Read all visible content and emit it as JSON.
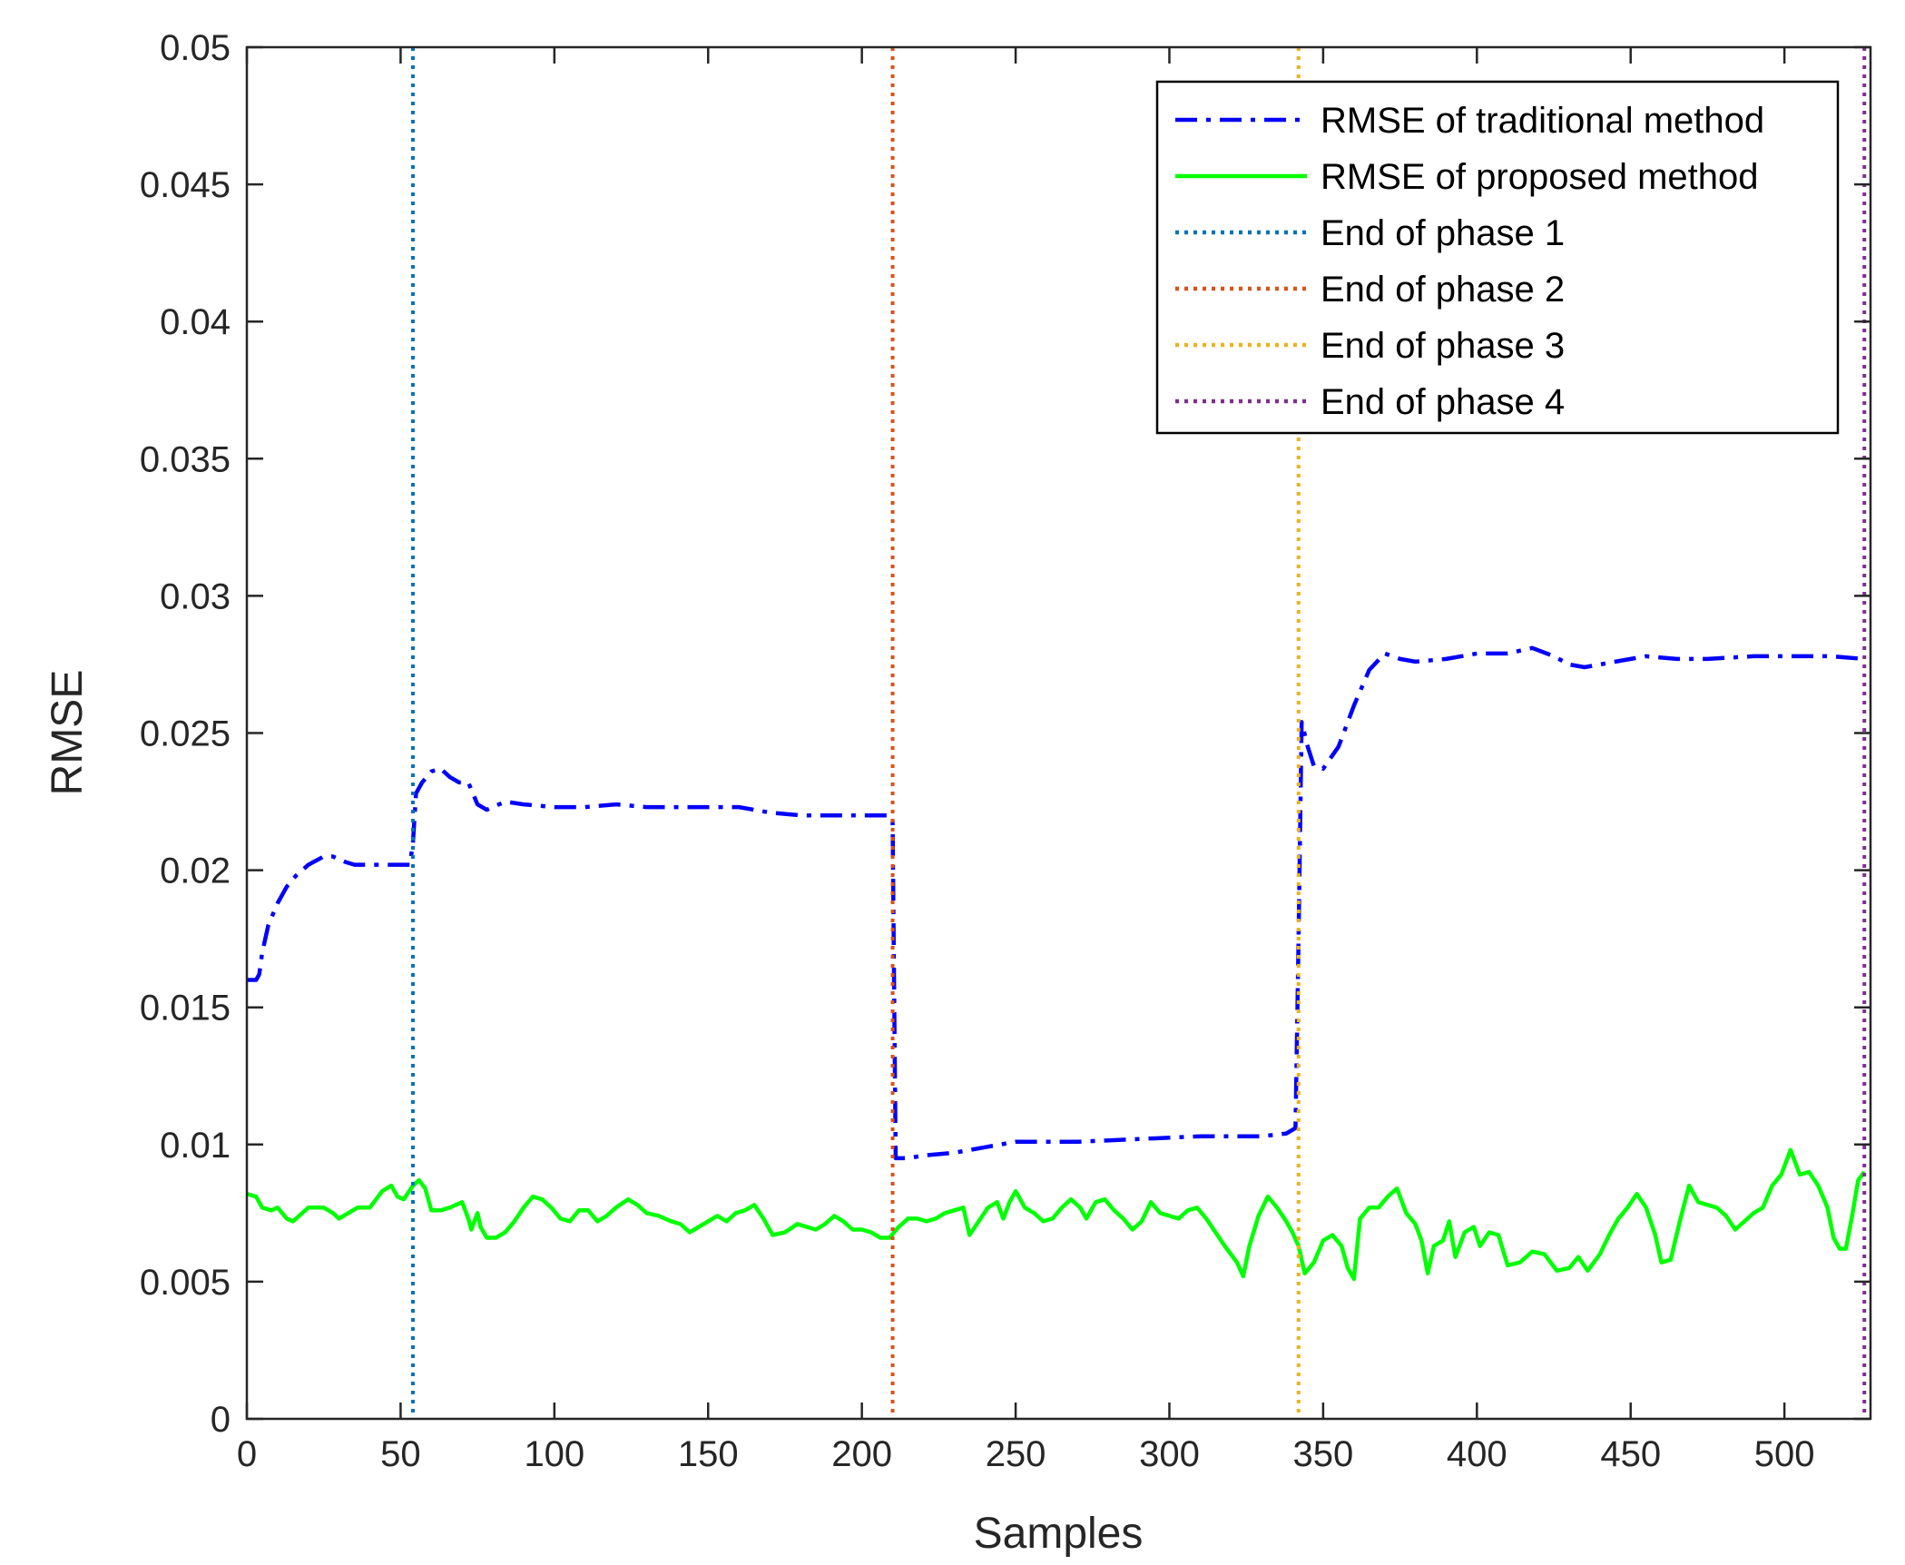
{
  "chart_data": {
    "type": "line",
    "title": "",
    "xlabel": "Samples",
    "ylabel": "RMSE",
    "xlim": [
      0,
      528
    ],
    "ylim": [
      0,
      0.05
    ],
    "x_ticks": [
      0,
      50,
      100,
      150,
      200,
      250,
      300,
      350,
      400,
      450,
      500
    ],
    "x_tick_labels": [
      "0",
      "50",
      "100",
      "150",
      "200",
      "250",
      "300",
      "350",
      "400",
      "450",
      "500"
    ],
    "y_ticks": [
      0,
      0.005,
      0.01,
      0.015,
      0.02,
      0.025,
      0.03,
      0.035,
      0.04,
      0.045,
      0.05
    ],
    "y_tick_labels": [
      "0",
      "0.005",
      "0.01",
      "0.015",
      "0.02",
      "0.025",
      "0.03",
      "0.035",
      "0.04",
      "0.045",
      "0.05"
    ],
    "grid": false,
    "legend_position": "top-right",
    "series": [
      {
        "name": "RMSE of traditional method",
        "color": "#0000ff",
        "style": "dashdot",
        "points": [
          [
            0,
            0.016
          ],
          [
            3,
            0.016
          ],
          [
            4,
            0.0162
          ],
          [
            5,
            0.017
          ],
          [
            7,
            0.018
          ],
          [
            10,
            0.0188
          ],
          [
            13,
            0.0194
          ],
          [
            16,
            0.0198
          ],
          [
            20,
            0.0202
          ],
          [
            25,
            0.0205
          ],
          [
            28,
            0.0205
          ],
          [
            32,
            0.0203
          ],
          [
            35,
            0.0202
          ],
          [
            40,
            0.0202
          ],
          [
            45,
            0.0202
          ],
          [
            50,
            0.0202
          ],
          [
            53,
            0.0202
          ],
          [
            54,
            0.021
          ],
          [
            55,
            0.0228
          ],
          [
            57,
            0.0232
          ],
          [
            60,
            0.0236
          ],
          [
            63,
            0.0237
          ],
          [
            66,
            0.0234
          ],
          [
            69,
            0.0232
          ],
          [
            72,
            0.0232
          ],
          [
            75,
            0.0224
          ],
          [
            78,
            0.0222
          ],
          [
            84,
            0.0225
          ],
          [
            90,
            0.0224
          ],
          [
            100,
            0.0223
          ],
          [
            110,
            0.0223
          ],
          [
            120,
            0.0224
          ],
          [
            130,
            0.0223
          ],
          [
            140,
            0.0223
          ],
          [
            150,
            0.0223
          ],
          [
            160,
            0.0223
          ],
          [
            170,
            0.0221
          ],
          [
            180,
            0.022
          ],
          [
            190,
            0.022
          ],
          [
            200,
            0.022
          ],
          [
            209,
            0.022
          ],
          [
            210,
            0.0218
          ],
          [
            211,
            0.0095
          ],
          [
            215,
            0.0095
          ],
          [
            220,
            0.0096
          ],
          [
            230,
            0.0097
          ],
          [
            240,
            0.0099
          ],
          [
            250,
            0.0101
          ],
          [
            270,
            0.0101
          ],
          [
            290,
            0.0102
          ],
          [
            310,
            0.0103
          ],
          [
            330,
            0.0103
          ],
          [
            338,
            0.0104
          ],
          [
            341,
            0.0106
          ],
          [
            342,
            0.0175
          ],
          [
            343,
            0.0254
          ],
          [
            345,
            0.0245
          ],
          [
            347,
            0.0238
          ],
          [
            350,
            0.0237
          ],
          [
            355,
            0.0245
          ],
          [
            360,
            0.026
          ],
          [
            365,
            0.0273
          ],
          [
            370,
            0.0279
          ],
          [
            375,
            0.0277
          ],
          [
            380,
            0.0276
          ],
          [
            390,
            0.0277
          ],
          [
            400,
            0.0279
          ],
          [
            410,
            0.0279
          ],
          [
            418,
            0.0281
          ],
          [
            425,
            0.0278
          ],
          [
            430,
            0.0275
          ],
          [
            435,
            0.0274
          ],
          [
            445,
            0.0276
          ],
          [
            455,
            0.0278
          ],
          [
            465,
            0.0277
          ],
          [
            475,
            0.0277
          ],
          [
            490,
            0.0278
          ],
          [
            505,
            0.0278
          ],
          [
            515,
            0.0278
          ],
          [
            526,
            0.0277
          ]
        ]
      },
      {
        "name": "RMSE of proposed method",
        "color": "#00ff00",
        "style": "solid",
        "points": [
          [
            0,
            0.0082
          ],
          [
            3,
            0.0081
          ],
          [
            5,
            0.0077
          ],
          [
            8,
            0.0076
          ],
          [
            10,
            0.0077
          ],
          [
            13,
            0.0073
          ],
          [
            15,
            0.0072
          ],
          [
            18,
            0.0075
          ],
          [
            20,
            0.0077
          ],
          [
            25,
            0.0077
          ],
          [
            28,
            0.0075
          ],
          [
            30,
            0.0073
          ],
          [
            33,
            0.0075
          ],
          [
            36,
            0.0077
          ],
          [
            40,
            0.0077
          ],
          [
            44,
            0.0083
          ],
          [
            47,
            0.0085
          ],
          [
            49,
            0.0081
          ],
          [
            51,
            0.008
          ],
          [
            54,
            0.0085
          ],
          [
            56,
            0.0087
          ],
          [
            58,
            0.0084
          ],
          [
            60,
            0.0076
          ],
          [
            63,
            0.0076
          ],
          [
            66,
            0.0077
          ],
          [
            70,
            0.0079
          ],
          [
            72,
            0.0073
          ],
          [
            73,
            0.0069
          ],
          [
            75,
            0.0075
          ],
          [
            76,
            0.007
          ],
          [
            78,
            0.0066
          ],
          [
            81,
            0.0066
          ],
          [
            84,
            0.0068
          ],
          [
            87,
            0.0072
          ],
          [
            90,
            0.0077
          ],
          [
            93,
            0.0081
          ],
          [
            96,
            0.008
          ],
          [
            99,
            0.0077
          ],
          [
            102,
            0.0073
          ],
          [
            105,
            0.0072
          ],
          [
            108,
            0.0076
          ],
          [
            111,
            0.0076
          ],
          [
            114,
            0.0072
          ],
          [
            117,
            0.0074
          ],
          [
            120,
            0.0077
          ],
          [
            124,
            0.008
          ],
          [
            127,
            0.0078
          ],
          [
            130,
            0.0075
          ],
          [
            134,
            0.0074
          ],
          [
            138,
            0.0072
          ],
          [
            141,
            0.0071
          ],
          [
            144,
            0.0068
          ],
          [
            147,
            0.007
          ],
          [
            150,
            0.0072
          ],
          [
            153,
            0.0074
          ],
          [
            156,
            0.0072
          ],
          [
            159,
            0.0075
          ],
          [
            162,
            0.0076
          ],
          [
            165,
            0.0078
          ],
          [
            168,
            0.0073
          ],
          [
            171,
            0.0067
          ],
          [
            175,
            0.0068
          ],
          [
            179,
            0.0071
          ],
          [
            182,
            0.007
          ],
          [
            185,
            0.0069
          ],
          [
            188,
            0.0071
          ],
          [
            191,
            0.0074
          ],
          [
            194,
            0.0072
          ],
          [
            197,
            0.0069
          ],
          [
            200,
            0.0069
          ],
          [
            203,
            0.0068
          ],
          [
            206,
            0.0066
          ],
          [
            209,
            0.0066
          ],
          [
            212,
            0.007
          ],
          [
            215,
            0.0073
          ],
          [
            218,
            0.0073
          ],
          [
            221,
            0.0072
          ],
          [
            224,
            0.0073
          ],
          [
            227,
            0.0075
          ],
          [
            230,
            0.0076
          ],
          [
            233,
            0.0077
          ],
          [
            235,
            0.0067
          ],
          [
            238,
            0.0072
          ],
          [
            241,
            0.0077
          ],
          [
            244,
            0.0079
          ],
          [
            246,
            0.0073
          ],
          [
            248,
            0.0079
          ],
          [
            250,
            0.0083
          ],
          [
            253,
            0.0077
          ],
          [
            256,
            0.0075
          ],
          [
            259,
            0.0072
          ],
          [
            262,
            0.0073
          ],
          [
            265,
            0.0077
          ],
          [
            268,
            0.008
          ],
          [
            271,
            0.0077
          ],
          [
            273,
            0.0073
          ],
          [
            276,
            0.0079
          ],
          [
            279,
            0.008
          ],
          [
            282,
            0.0076
          ],
          [
            285,
            0.0073
          ],
          [
            288,
            0.0069
          ],
          [
            291,
            0.0072
          ],
          [
            294,
            0.0079
          ],
          [
            297,
            0.0075
          ],
          [
            300,
            0.0074
          ],
          [
            303,
            0.0073
          ],
          [
            306,
            0.0076
          ],
          [
            309,
            0.0077
          ],
          [
            312,
            0.0073
          ],
          [
            315,
            0.0068
          ],
          [
            318,
            0.0063
          ],
          [
            322,
            0.0057
          ],
          [
            324,
            0.0052
          ],
          [
            326,
            0.0063
          ],
          [
            329,
            0.0074
          ],
          [
            332,
            0.0081
          ],
          [
            335,
            0.0077
          ],
          [
            338,
            0.0072
          ],
          [
            340,
            0.0068
          ],
          [
            342,
            0.0063
          ],
          [
            344,
            0.0053
          ],
          [
            347,
            0.0057
          ],
          [
            350,
            0.0065
          ],
          [
            353,
            0.0067
          ],
          [
            356,
            0.0063
          ],
          [
            358,
            0.0055
          ],
          [
            360,
            0.0051
          ],
          [
            362,
            0.0073
          ],
          [
            365,
            0.0077
          ],
          [
            368,
            0.0077
          ],
          [
            371,
            0.0081
          ],
          [
            374,
            0.0084
          ],
          [
            377,
            0.0075
          ],
          [
            380,
            0.0071
          ],
          [
            382,
            0.0065
          ],
          [
            384,
            0.0053
          ],
          [
            386,
            0.0063
          ],
          [
            389,
            0.0065
          ],
          [
            391,
            0.0072
          ],
          [
            393,
            0.0059
          ],
          [
            396,
            0.0068
          ],
          [
            399,
            0.007
          ],
          [
            401,
            0.0063
          ],
          [
            404,
            0.0068
          ],
          [
            407,
            0.0067
          ],
          [
            410,
            0.0056
          ],
          [
            414,
            0.0057
          ],
          [
            418,
            0.0061
          ],
          [
            422,
            0.006
          ],
          [
            426,
            0.0054
          ],
          [
            430,
            0.0055
          ],
          [
            433,
            0.0059
          ],
          [
            436,
            0.0054
          ],
          [
            440,
            0.006
          ],
          [
            443,
            0.0067
          ],
          [
            446,
            0.0073
          ],
          [
            449,
            0.0077
          ],
          [
            452,
            0.0082
          ],
          [
            455,
            0.0077
          ],
          [
            458,
            0.0067
          ],
          [
            460,
            0.0057
          ],
          [
            463,
            0.0058
          ],
          [
            466,
            0.0072
          ],
          [
            469,
            0.0085
          ],
          [
            472,
            0.0079
          ],
          [
            475,
            0.0078
          ],
          [
            478,
            0.0077
          ],
          [
            481,
            0.0074
          ],
          [
            484,
            0.0069
          ],
          [
            487,
            0.0072
          ],
          [
            490,
            0.0075
          ],
          [
            493,
            0.0077
          ],
          [
            496,
            0.0085
          ],
          [
            499,
            0.0089
          ],
          [
            502,
            0.0098
          ],
          [
            505,
            0.0089
          ],
          [
            508,
            0.009
          ],
          [
            511,
            0.0085
          ],
          [
            514,
            0.0077
          ],
          [
            516,
            0.0066
          ],
          [
            518,
            0.0062
          ],
          [
            520,
            0.0062
          ],
          [
            522,
            0.0074
          ],
          [
            524,
            0.0087
          ],
          [
            526,
            0.009
          ]
        ]
      },
      {
        "name": "End of phase 1",
        "color": "#0072bd",
        "style": "dotted",
        "vline_x": 54
      },
      {
        "name": "End of phase 2",
        "color": "#d95319",
        "style": "dotted",
        "vline_x": 210
      },
      {
        "name": "End of phase 3",
        "color": "#edb120",
        "style": "dotted",
        "vline_x": 342
      },
      {
        "name": "End of phase 4",
        "color": "#7e2f8e",
        "style": "dotted",
        "vline_x": 526
      }
    ]
  }
}
